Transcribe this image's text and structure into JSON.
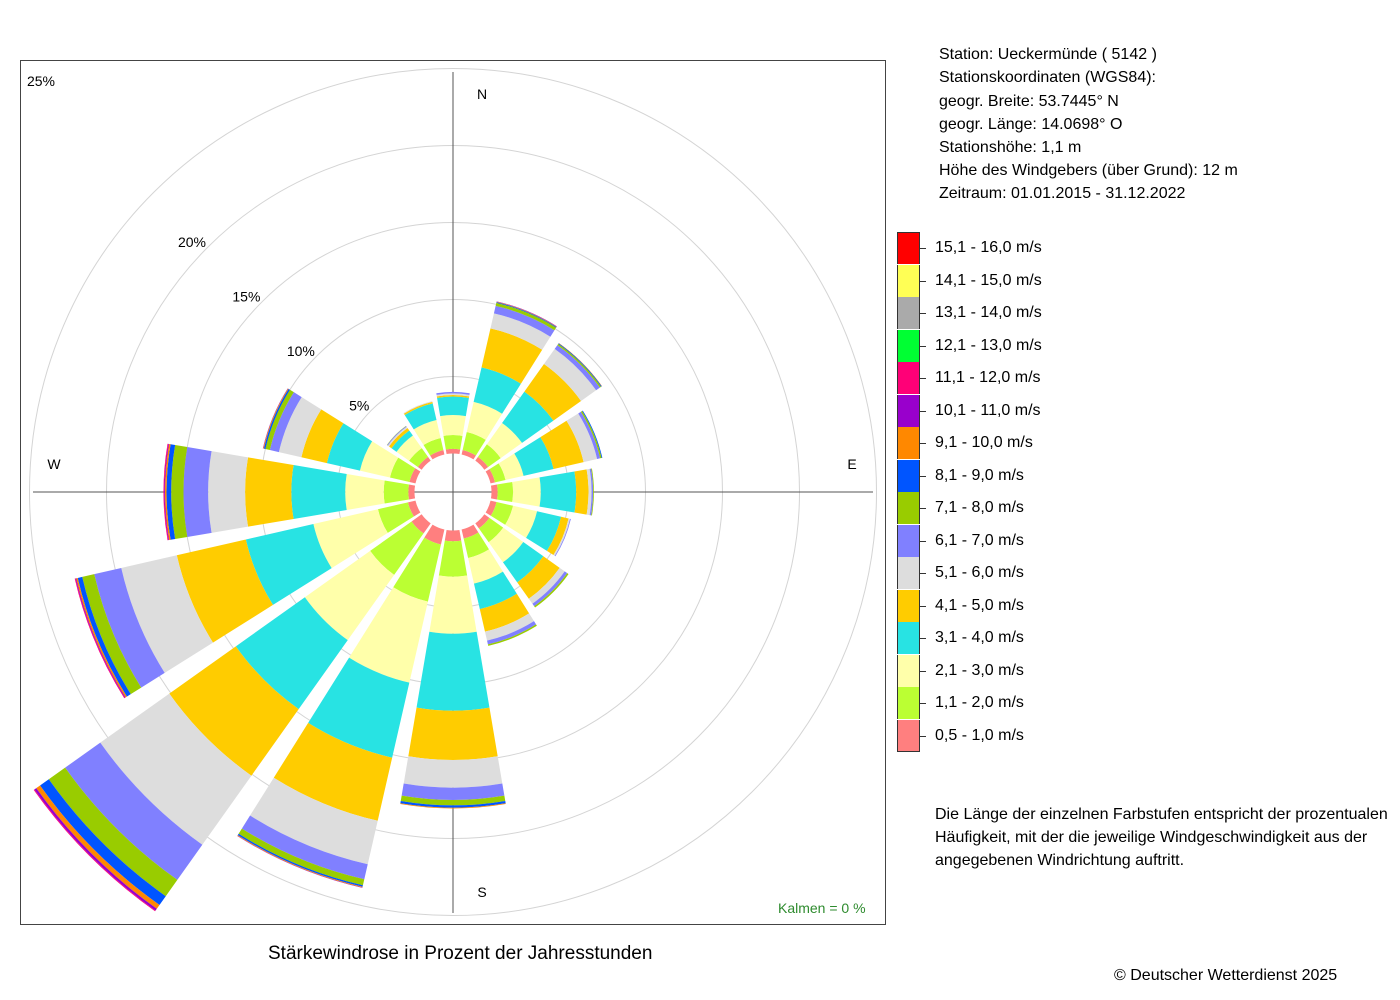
{
  "station": {
    "name_line": "Station:  Ueckermünde  ( 5142 )",
    "coords_heading": "Stationskoordinaten (WGS84):",
    "lat_line": "geogr. Breite: 53.7445° N",
    "lon_line": "geogr. Länge: 14.0698° O",
    "height_line": "Stationshöhe: 1,1 m",
    "sensor_height_line": "Höhe des Windgebers (über Grund): 12 m",
    "period_line": "Zeitraum: 01.01.2015 - 31.12.2022"
  },
  "legend": {
    "items": [
      {
        "label": "15,1 - 16,0 m/s",
        "color": "#ff0000"
      },
      {
        "label": "14,1 - 15,0 m/s",
        "color": "#ffff55"
      },
      {
        "label": "13,1 - 14,0 m/s",
        "color": "#aaaaaa"
      },
      {
        "label": "12,1 - 13,0 m/s",
        "color": "#00ff33"
      },
      {
        "label": "11,1 - 12,0 m/s",
        "color": "#ff0077"
      },
      {
        "label": "10,1 - 11,0 m/s",
        "color": "#9900cc"
      },
      {
        "label": "9,1 - 10,0 m/s",
        "color": "#ff8800"
      },
      {
        "label": "8,1 - 9,0 m/s",
        "color": "#0055ff"
      },
      {
        "label": "7,1 - 8,0 m/s",
        "color": "#99cc00"
      },
      {
        "label": "6,1 - 7,0 m/s",
        "color": "#8080ff"
      },
      {
        "label": "5,1 - 6,0 m/s",
        "color": "#dddddd"
      },
      {
        "label": "4,1 - 5,0 m/s",
        "color": "#ffcc00"
      },
      {
        "label": "3,1 - 4,0 m/s",
        "color": "#28e3e3"
      },
      {
        "label": "2,1 - 3,0 m/s",
        "color": "#ffffaa"
      },
      {
        "label": "1,1 - 2,0 m/s",
        "color": "#bbff33"
      },
      {
        "label": "0,5 - 1,0 m/s",
        "color": "#ff7f7f"
      }
    ]
  },
  "note": {
    "line1": "Die Länge der einzelnen Farbstufen entspricht der prozentualen",
    "line2": "Häufigkeit, mit der die jeweilige Windgeschwindigkeit aus der",
    "line3": "angegebenen Windrichtung auftritt."
  },
  "calm_label": "Kalmen  =  0 %",
  "title": "Stärkewindrose in Prozent der Jahresstunden",
  "copyright": "© Deutscher Wetterdienst  2025",
  "chart_data": {
    "type": "polar-stacked-bar",
    "title": "Stärkewindrose in Prozent der Jahresstunden",
    "directions": [
      "N",
      "NNO",
      "NO",
      "ONO",
      "O",
      "OSO",
      "SO",
      "SSO",
      "S",
      "SSW",
      "SW",
      "WSW",
      "W",
      "WNW",
      "NW",
      "NNW"
    ],
    "direction_angles_deg": [
      0,
      22.5,
      45,
      67.5,
      90,
      112.5,
      135,
      157.5,
      180,
      202.5,
      225,
      247.5,
      270,
      292.5,
      315,
      337.5
    ],
    "compass_labels": [
      "N",
      "E",
      "S",
      "W"
    ],
    "ring_labels": [
      "5%",
      "10%",
      "15%",
      "20%",
      "25%"
    ],
    "ring_values": [
      5,
      10,
      15,
      20,
      25
    ],
    "inner_offset_percent": 2.5,
    "calm_percent": 0,
    "speed_classes": [
      "0,5 - 1,0 m/s",
      "1,1 - 2,0 m/s",
      "2,1 - 3,0 m/s",
      "3,1 - 4,0 m/s",
      "4,1 - 5,0 m/s",
      "5,1 - 6,0 m/s",
      "6,1 - 7,0 m/s",
      "7,1 - 8,0 m/s",
      "8,1 - 9,0 m/s",
      "9,1 - 10,0 m/s",
      "10,1 - 11,0 m/s",
      "11,1 - 12,0 m/s",
      "12,1 - 13,0 m/s",
      "13,1 - 14,0 m/s",
      "14,1 - 15,0 m/s",
      "15,1 - 16,0 m/s"
    ],
    "class_colors": [
      "#ff7f7f",
      "#bbff33",
      "#ffffaa",
      "#28e3e3",
      "#ffcc00",
      "#dddddd",
      "#8080ff",
      "#99cc00",
      "#0055ff",
      "#ff8800",
      "#9900cc",
      "#ff0077",
      "#00ff33",
      "#aaaaaa",
      "#ffff55",
      "#ff0000"
    ],
    "values": [
      [
        0.3,
        0.9,
        1.3,
        1.2,
        0.1,
        0.1,
        0.1,
        0,
        0,
        0,
        0,
        0,
        0,
        0,
        0,
        0
      ],
      [
        0.3,
        1.2,
        2.0,
        2.3,
        2.6,
        1.0,
        0.5,
        0.2,
        0.05,
        0.03,
        0.02,
        0,
        0,
        0,
        0,
        0
      ],
      [
        0.3,
        1.0,
        1.7,
        2.5,
        2.2,
        1.2,
        0.3,
        0.1,
        0.05,
        0.02,
        0,
        0,
        0,
        0,
        0,
        0
      ],
      [
        0.3,
        0.7,
        1.2,
        2.0,
        2.0,
        0.9,
        0.2,
        0.1,
        0.05,
        0,
        0,
        0,
        0,
        0,
        0,
        0
      ],
      [
        0.4,
        1.0,
        1.8,
        2.3,
        0.8,
        0.2,
        0.1,
        0.05,
        0,
        0,
        0,
        0,
        0,
        0,
        0,
        0
      ],
      [
        0.4,
        1.1,
        1.6,
        1.6,
        0.5,
        0.1,
        0.05,
        0,
        0,
        0,
        0,
        0,
        0,
        0,
        0,
        0
      ],
      [
        0.4,
        1.1,
        1.6,
        1.6,
        1.3,
        0.4,
        0.2,
        0.1,
        0,
        0,
        0,
        0,
        0,
        0,
        0,
        0
      ],
      [
        0.6,
        1.3,
        1.7,
        1.7,
        1.5,
        0.6,
        0.25,
        0.1,
        0,
        0,
        0,
        0,
        0,
        0,
        0,
        0
      ],
      [
        0.7,
        2.3,
        3.7,
        5.0,
        3.2,
        1.8,
        0.8,
        0.35,
        0.15,
        0.05,
        0,
        0,
        0,
        0,
        0,
        0
      ],
      [
        1.0,
        3.8,
        5.4,
        5.0,
        4.2,
        2.9,
        1.0,
        0.4,
        0.1,
        0.05,
        0.02,
        0,
        0,
        0,
        0,
        0
      ],
      [
        0.8,
        3.3,
        5.2,
        5.5,
        5.3,
        5.5,
        2.8,
        1.3,
        0.7,
        0.3,
        0.15,
        0.05,
        0,
        0,
        0,
        0
      ],
      [
        0.5,
        2.0,
        4.3,
        4.5,
        4.6,
        3.7,
        1.8,
        0.8,
        0.3,
        0.1,
        0.05,
        0.05,
        0,
        0,
        0,
        0
      ],
      [
        0.4,
        1.6,
        2.5,
        3.5,
        3.0,
        2.4,
        1.6,
        0.8,
        0.3,
        0.1,
        0.05,
        0.05,
        0,
        0,
        0,
        0
      ],
      [
        0.4,
        1.3,
        2.0,
        2.2,
        1.7,
        1.5,
        0.6,
        0.3,
        0.1,
        0.05,
        0.02,
        0,
        0,
        0,
        0,
        0
      ],
      [
        0.3,
        0.7,
        1.0,
        0.4,
        0.2,
        0.1,
        0.05,
        0.02,
        0,
        0,
        0,
        0,
        0,
        0,
        0,
        0
      ],
      [
        0.3,
        0.8,
        1.2,
        1.1,
        0.1,
        0.05,
        0,
        0,
        0,
        0,
        0,
        0,
        0,
        0,
        0,
        0
      ]
    ]
  }
}
